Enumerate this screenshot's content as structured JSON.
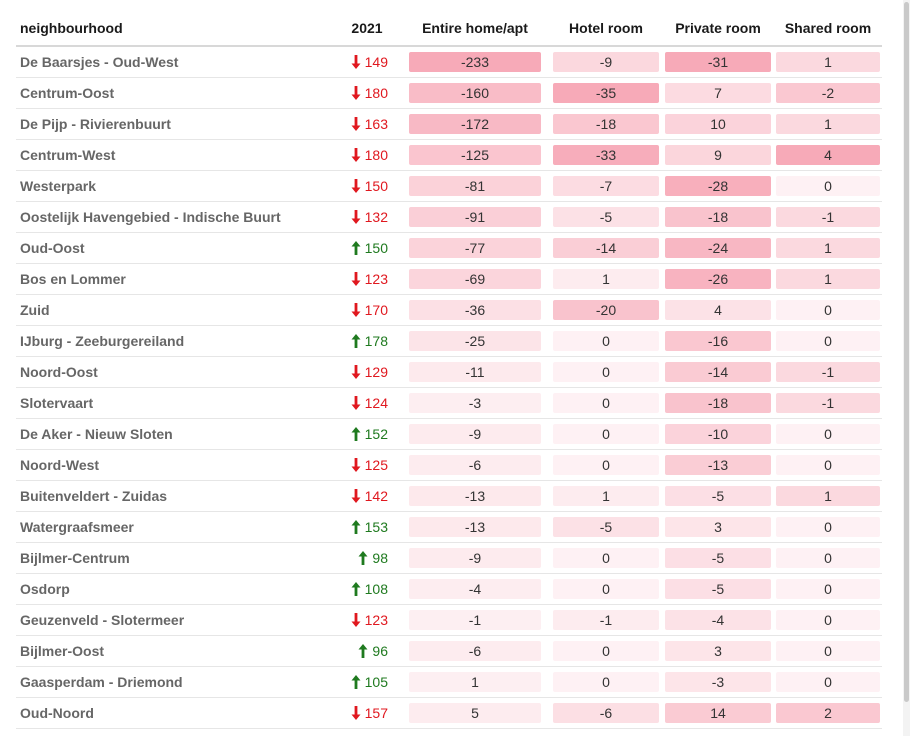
{
  "columns": {
    "neighbourhood": "neighbourhood",
    "year": "2021",
    "entire": "Entire home/apt",
    "hotel": "Hotel room",
    "private": "Private room",
    "shared": "Shared room"
  },
  "colors": {
    "down": "#e0181f",
    "up": "#1f7a1f",
    "heat": "#f7aab8"
  },
  "icons": {
    "down": "arrow-down-icon",
    "up": "arrow-up-icon"
  },
  "rows": [
    {
      "name": "De Baarsjes - Oud-West",
      "dir": "down",
      "y2021": "149",
      "entire": "-233",
      "hotel": "-9",
      "private": "-31",
      "shared": "1"
    },
    {
      "name": "Centrum-Oost",
      "dir": "down",
      "y2021": "180",
      "entire": "-160",
      "hotel": "-35",
      "private": "7",
      "shared": "-2"
    },
    {
      "name": "De Pijp - Rivierenbuurt",
      "dir": "down",
      "y2021": "163",
      "entire": "-172",
      "hotel": "-18",
      "private": "10",
      "shared": "1"
    },
    {
      "name": "Centrum-West",
      "dir": "down",
      "y2021": "180",
      "entire": "-125",
      "hotel": "-33",
      "private": "9",
      "shared": "4"
    },
    {
      "name": "Westerpark",
      "dir": "down",
      "y2021": "150",
      "entire": "-81",
      "hotel": "-7",
      "private": "-28",
      "shared": "0"
    },
    {
      "name": "Oostelijk Havengebied - Indische Buurt",
      "dir": "down",
      "y2021": "132",
      "entire": "-91",
      "hotel": "-5",
      "private": "-18",
      "shared": "-1"
    },
    {
      "name": "Oud-Oost",
      "dir": "up",
      "y2021": "150",
      "entire": "-77",
      "hotel": "-14",
      "private": "-24",
      "shared": "1"
    },
    {
      "name": "Bos en Lommer",
      "dir": "down",
      "y2021": "123",
      "entire": "-69",
      "hotel": "1",
      "private": "-26",
      "shared": "1"
    },
    {
      "name": "Zuid",
      "dir": "down",
      "y2021": "170",
      "entire": "-36",
      "hotel": "-20",
      "private": "4",
      "shared": "0"
    },
    {
      "name": "IJburg - Zeeburgereiland",
      "dir": "up",
      "y2021": "178",
      "entire": "-25",
      "hotel": "0",
      "private": "-16",
      "shared": "0"
    },
    {
      "name": "Noord-Oost",
      "dir": "down",
      "y2021": "129",
      "entire": "-11",
      "hotel": "0",
      "private": "-14",
      "shared": "-1"
    },
    {
      "name": "Slotervaart",
      "dir": "down",
      "y2021": "124",
      "entire": "-3",
      "hotel": "0",
      "private": "-18",
      "shared": "-1"
    },
    {
      "name": "De Aker - Nieuw Sloten",
      "dir": "up",
      "y2021": "152",
      "entire": "-9",
      "hotel": "0",
      "private": "-10",
      "shared": "0"
    },
    {
      "name": "Noord-West",
      "dir": "down",
      "y2021": "125",
      "entire": "-6",
      "hotel": "0",
      "private": "-13",
      "shared": "0"
    },
    {
      "name": "Buitenveldert - Zuidas",
      "dir": "down",
      "y2021": "142",
      "entire": "-13",
      "hotel": "1",
      "private": "-5",
      "shared": "1"
    },
    {
      "name": "Watergraafsmeer",
      "dir": "up",
      "y2021": "153",
      "entire": "-13",
      "hotel": "-5",
      "private": "3",
      "shared": "0"
    },
    {
      "name": "Bijlmer-Centrum",
      "dir": "up",
      "y2021": "98",
      "entire": "-9",
      "hotel": "0",
      "private": "-5",
      "shared": "0"
    },
    {
      "name": "Osdorp",
      "dir": "up",
      "y2021": "108",
      "entire": "-4",
      "hotel": "0",
      "private": "-5",
      "shared": "0"
    },
    {
      "name": "Geuzenveld - Slotermeer",
      "dir": "down",
      "y2021": "123",
      "entire": "-1",
      "hotel": "-1",
      "private": "-4",
      "shared": "0"
    },
    {
      "name": "Bijlmer-Oost",
      "dir": "up",
      "y2021": "96",
      "entire": "-6",
      "hotel": "0",
      "private": "3",
      "shared": "0"
    },
    {
      "name": "Gaasperdam - Driemond",
      "dir": "up",
      "y2021": "105",
      "entire": "1",
      "hotel": "0",
      "private": "-3",
      "shared": "0"
    },
    {
      "name": "Oud-Noord",
      "dir": "down",
      "y2021": "157",
      "entire": "5",
      "hotel": "-6",
      "private": "14",
      "shared": "2"
    }
  ]
}
